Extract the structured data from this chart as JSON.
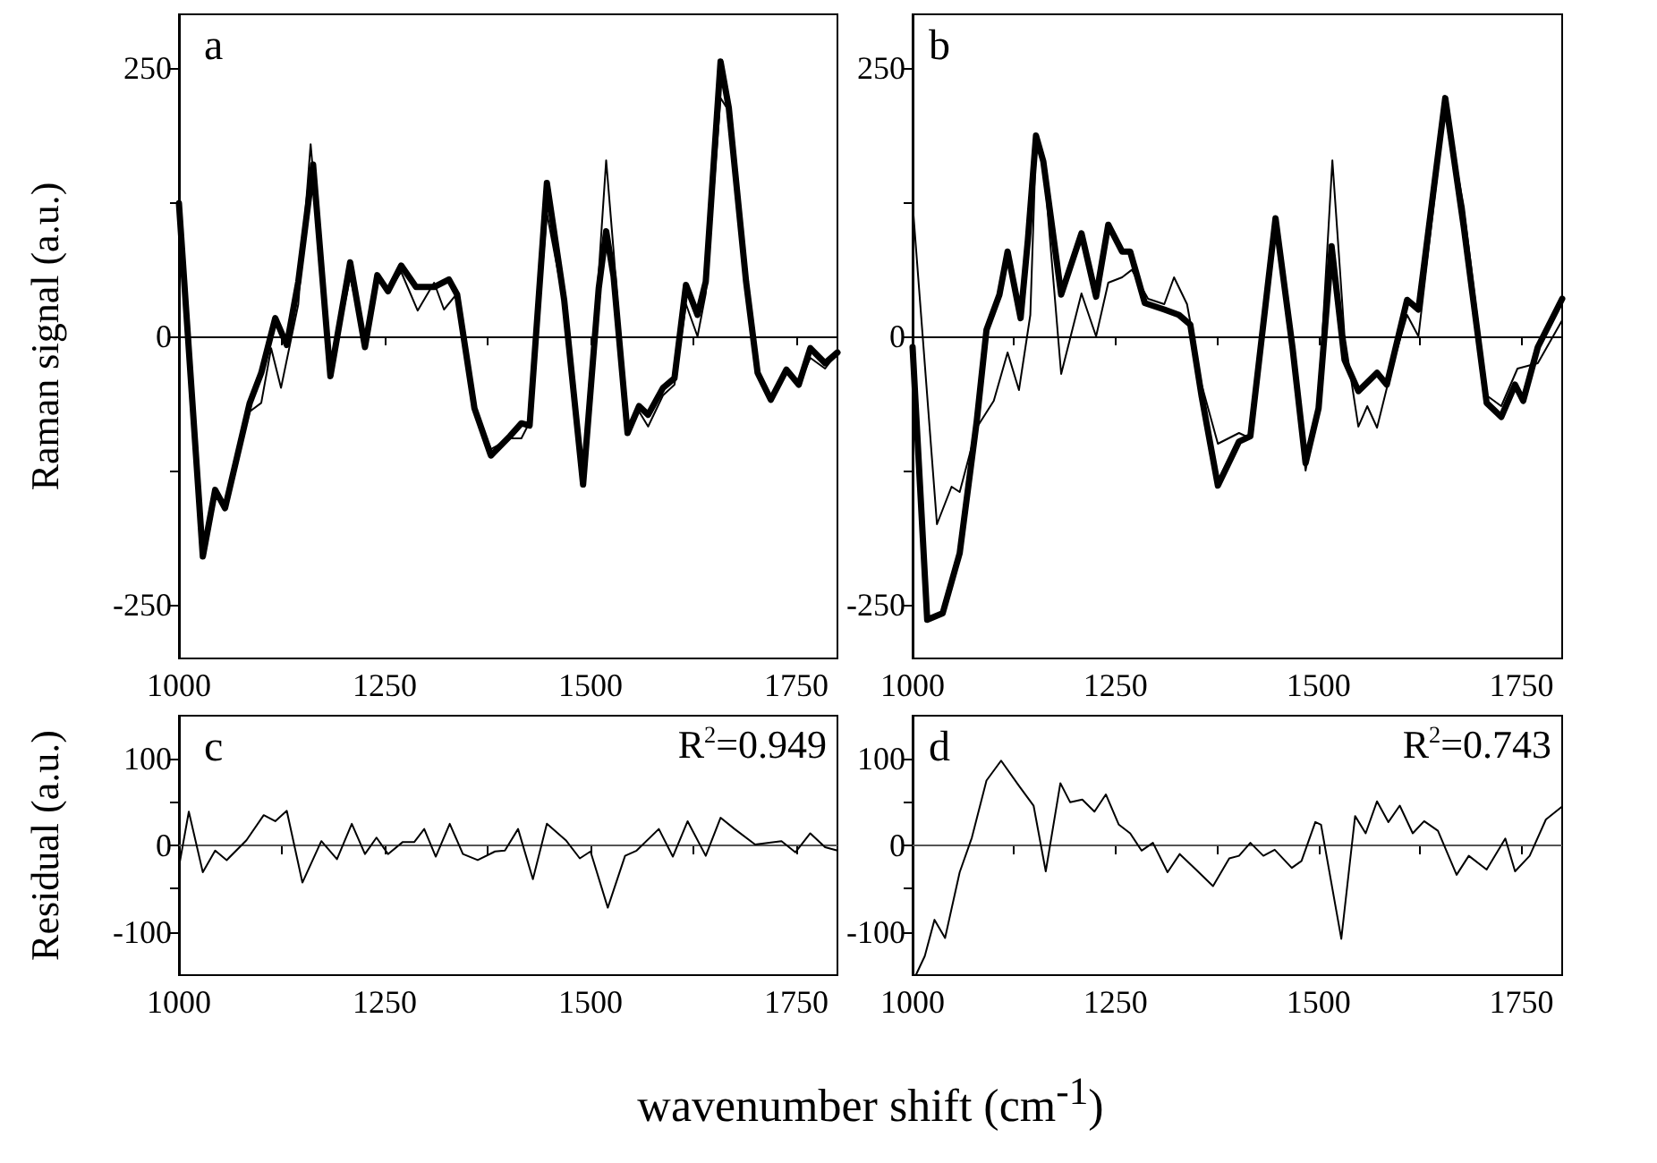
{
  "chart_data": [
    {
      "type": "line",
      "ylabel": "Raman signal (a.u.)",
      "annotations": [
        "a"
      ],
      "xlim": [
        1000,
        1800
      ],
      "xticks": [
        1000,
        {
          "value": 1125,
          "label": null
        },
        1250,
        {
          "value": 1375,
          "label": null
        },
        1500,
        {
          "value": 1625,
          "label": null
        },
        1750
      ],
      "ylim": [
        -300,
        300
      ],
      "yticks": [
        -250,
        {
          "value": -125,
          "label": null
        },
        0,
        {
          "value": 125,
          "label": null
        },
        250
      ],
      "marker": "none",
      "line_style": "solid",
      "series": [
        {
          "color": "#000000",
          "x": [
            1000,
            1029,
            1044,
            1056,
            1086,
            1100,
            1112,
            1124,
            1145,
            1160,
            1184,
            1208,
            1226,
            1241,
            1254,
            1270,
            1290,
            1310,
            1322,
            1338,
            1359,
            1379,
            1402,
            1416,
            1426,
            1447,
            1468,
            1491,
            1510,
            1519,
            1528,
            1545,
            1559,
            1570,
            1588,
            1602,
            1616,
            1630,
            1640,
            1658,
            1668,
            1689,
            1703,
            1719,
            1738,
            1753,
            1767,
            1785,
            1800
          ],
          "values": [
            124,
            -195,
            -150,
            -155,
            -70,
            -62,
            -11,
            -48,
            30,
            179,
            -35,
            55,
            -5,
            57,
            42,
            60,
            24,
            50,
            25,
            40,
            -67,
            -105,
            -95,
            -95,
            -80,
            115,
            30,
            -135,
            60,
            164,
            80,
            -90,
            -70,
            -84,
            -55,
            -45,
            30,
            0,
            40,
            222,
            210,
            50,
            -34,
            -59,
            -31,
            -45,
            -20,
            -30,
            -15
          ]
        },
        {
          "color": "#000000",
          "x": [
            1000,
            1029,
            1044,
            1056,
            1086,
            1100,
            1117,
            1131,
            1145,
            1163,
            1184,
            1208,
            1226,
            1241,
            1254,
            1270,
            1288,
            1310,
            1328,
            1338,
            1359,
            1379,
            1402,
            1416,
            1426,
            1447,
            1468,
            1491,
            1510,
            1519,
            1528,
            1545,
            1559,
            1570,
            1588,
            1602,
            1616,
            1630,
            1640,
            1658,
            1668,
            1689,
            1703,
            1719,
            1738,
            1753,
            1767,
            1785,
            1800
          ],
          "values": [
            124,
            -205,
            -143,
            -160,
            -62,
            -34,
            17,
            -8,
            51,
            160,
            -37,
            69,
            -10,
            57,
            42,
            66,
            46,
            46,
            53,
            39,
            -67,
            -111,
            -93,
            -81,
            -83,
            143,
            34,
            -138,
            45,
            98,
            56,
            -90,
            -65,
            -73,
            -48,
            -39,
            48,
            20,
            51,
            256,
            213,
            51,
            -34,
            -59,
            -31,
            -45,
            -11,
            -25,
            -15
          ]
        }
      ]
    },
    {
      "type": "line",
      "annotations": [
        "b"
      ],
      "xlim": [
        1000,
        1800
      ],
      "xticks": [
        1000,
        {
          "value": 1125,
          "label": null
        },
        1250,
        {
          "value": 1375,
          "label": null
        },
        1500,
        {
          "value": 1625,
          "label": null
        },
        1750
      ],
      "ylim": [
        -300,
        300
      ],
      "yticks": [
        -250,
        {
          "value": -125,
          "label": null
        },
        0,
        {
          "value": 125,
          "label": null
        },
        250
      ],
      "marker": "none",
      "line_style": "solid",
      "series": [
        {
          "color": "#000000",
          "x": [
            1000,
            1030,
            1048,
            1058,
            1079,
            1100,
            1117,
            1131,
            1145,
            1152,
            1161,
            1183,
            1208,
            1226,
            1241,
            1258,
            1270,
            1290,
            1310,
            1322,
            1338,
            1356,
            1376,
            1402,
            1416,
            1447,
            1468,
            1484,
            1500,
            1517,
            1532,
            1549,
            1560,
            1572,
            1590,
            1609,
            1623,
            1656,
            1679,
            1707,
            1725,
            1745,
            1770,
            1800
          ],
          "values": [
            124,
            -175,
            -140,
            -145,
            -85,
            -60,
            -15,
            -50,
            20,
            180,
            165,
            -35,
            40,
            0,
            50,
            55,
            62,
            35,
            30,
            55,
            30,
            -45,
            -100,
            -90,
            -95,
            110,
            -20,
            -125,
            -60,
            164,
            0,
            -84,
            -65,
            -85,
            -30,
            20,
            0,
            215,
            120,
            -55,
            -65,
            -30,
            -25,
            15
          ]
        },
        {
          "color": "#000000",
          "x": [
            1000,
            1018,
            1037,
            1058,
            1079,
            1091,
            1107,
            1117,
            1133,
            1142,
            1152,
            1161,
            1183,
            1208,
            1226,
            1241,
            1258,
            1268,
            1286,
            1310,
            1328,
            1342,
            1356,
            1376,
            1402,
            1416,
            1447,
            1468,
            1484,
            1500,
            1516,
            1532,
            1549,
            1572,
            1584,
            1609,
            1623,
            1656,
            1679,
            1707,
            1725,
            1742,
            1752,
            1770,
            1800
          ],
          "values": [
            -10,
            -264,
            -258,
            -202,
            -79,
            6,
            39,
            79,
            17,
            90,
            187,
            163,
            39,
            96,
            37,
            104,
            79,
            79,
            31,
            25,
            20,
            11,
            -56,
            -139,
            -98,
            -93,
            110,
            -11,
            -118,
            -67,
            84,
            -22,
            -51,
            -34,
            -45,
            34,
            25,
            222,
            101,
            -62,
            -75,
            -45,
            -60,
            -10,
            35
          ]
        }
      ]
    },
    {
      "type": "line",
      "ylabel": "Residual (a.u.)",
      "xlabel": "wavenumber shift (cm$^{-1}$)",
      "annotations": [
        "c",
        "R$^{2}$=0.949"
      ],
      "xlim": [
        1000,
        1800
      ],
      "xticks": [
        1000,
        {
          "value": 1125,
          "label": null
        },
        1250,
        {
          "value": 1375,
          "label": null
        },
        1500,
        {
          "value": 1625,
          "label": null
        },
        1750
      ],
      "ylim": [
        -150,
        150
      ],
      "yticks": [
        -100,
        {
          "value": -50,
          "label": null
        },
        0,
        {
          "value": 50,
          "label": null
        },
        100
      ],
      "marker": "none",
      "line_style": "solid",
      "ref_lines": [
        {
          "axis": "y",
          "value": 0,
          "color": "#555555"
        }
      ],
      "series": [
        {
          "color": "#000000",
          "x": [
            1000,
            1012,
            1029,
            1044,
            1058,
            1082,
            1103,
            1117,
            1131,
            1150,
            1173,
            1192,
            1210,
            1226,
            1240,
            1254,
            1272,
            1286,
            1298,
            1312,
            1329,
            1345,
            1363,
            1384,
            1396,
            1412,
            1430,
            1447,
            1470,
            1487,
            1500,
            1521,
            1542,
            1556,
            1583,
            1600,
            1618,
            1640,
            1658,
            1675,
            1700,
            1732,
            1749,
            1767,
            1785,
            1800
          ],
          "values": [
            -25,
            39,
            -31,
            -6,
            -17,
            6,
            35,
            28,
            40,
            -43,
            5,
            -16,
            25,
            -10,
            9,
            -10,
            4,
            4,
            19,
            -13,
            25,
            -10,
            -17,
            -7,
            -6,
            19,
            -39,
            25,
            6,
            -15,
            -7,
            -72,
            -12,
            -6,
            19,
            -13,
            28,
            -12,
            32,
            19,
            1,
            5,
            -8,
            14,
            -2,
            -6
          ]
        }
      ]
    },
    {
      "type": "line",
      "annotations": [
        "d",
        "R$^{2}$=0.743"
      ],
      "xlim": [
        1000,
        1800
      ],
      "xticks": [
        1000,
        {
          "value": 1125,
          "label": null
        },
        1250,
        {
          "value": 1375,
          "label": null
        },
        1500,
        {
          "value": 1625,
          "label": null
        },
        1750
      ],
      "ylim": [
        -150,
        150
      ],
      "yticks": [
        -100,
        {
          "value": -50,
          "label": null
        },
        0,
        {
          "value": 50,
          "label": null
        },
        100
      ],
      "marker": "none",
      "line_style": "solid",
      "ref_lines": [
        {
          "axis": "y",
          "value": 0,
          "color": "#555555"
        }
      ],
      "series": [
        {
          "color": "#000000",
          "x": [
            1004,
            1015,
            1027,
            1040,
            1058,
            1073,
            1091,
            1109,
            1131,
            1149,
            1164,
            1182,
            1194,
            1209,
            1224,
            1238,
            1254,
            1268,
            1282,
            1296,
            1314,
            1329,
            1349,
            1370,
            1390,
            1402,
            1416,
            1432,
            1446,
            1467,
            1479,
            1496,
            1503,
            1528,
            1545,
            1558,
            1572,
            1586,
            1600,
            1616,
            1630,
            1647,
            1670,
            1685,
            1707,
            1730,
            1742,
            1760,
            1780,
            1800
          ],
          "values": [
            -150,
            -128,
            -86,
            -107,
            -31,
            9,
            75,
            98,
            69,
            46,
            -30,
            72,
            50,
            53,
            39,
            59,
            24,
            14,
            -6,
            3,
            -31,
            -10,
            -28,
            -47,
            -15,
            -12,
            3,
            -12,
            -5,
            -26,
            -18,
            27,
            24,
            -108,
            34,
            14,
            51,
            27,
            46,
            14,
            28,
            17,
            -34,
            -12,
            -28,
            8,
            -30,
            -12,
            30,
            45
          ]
        }
      ]
    }
  ]
}
